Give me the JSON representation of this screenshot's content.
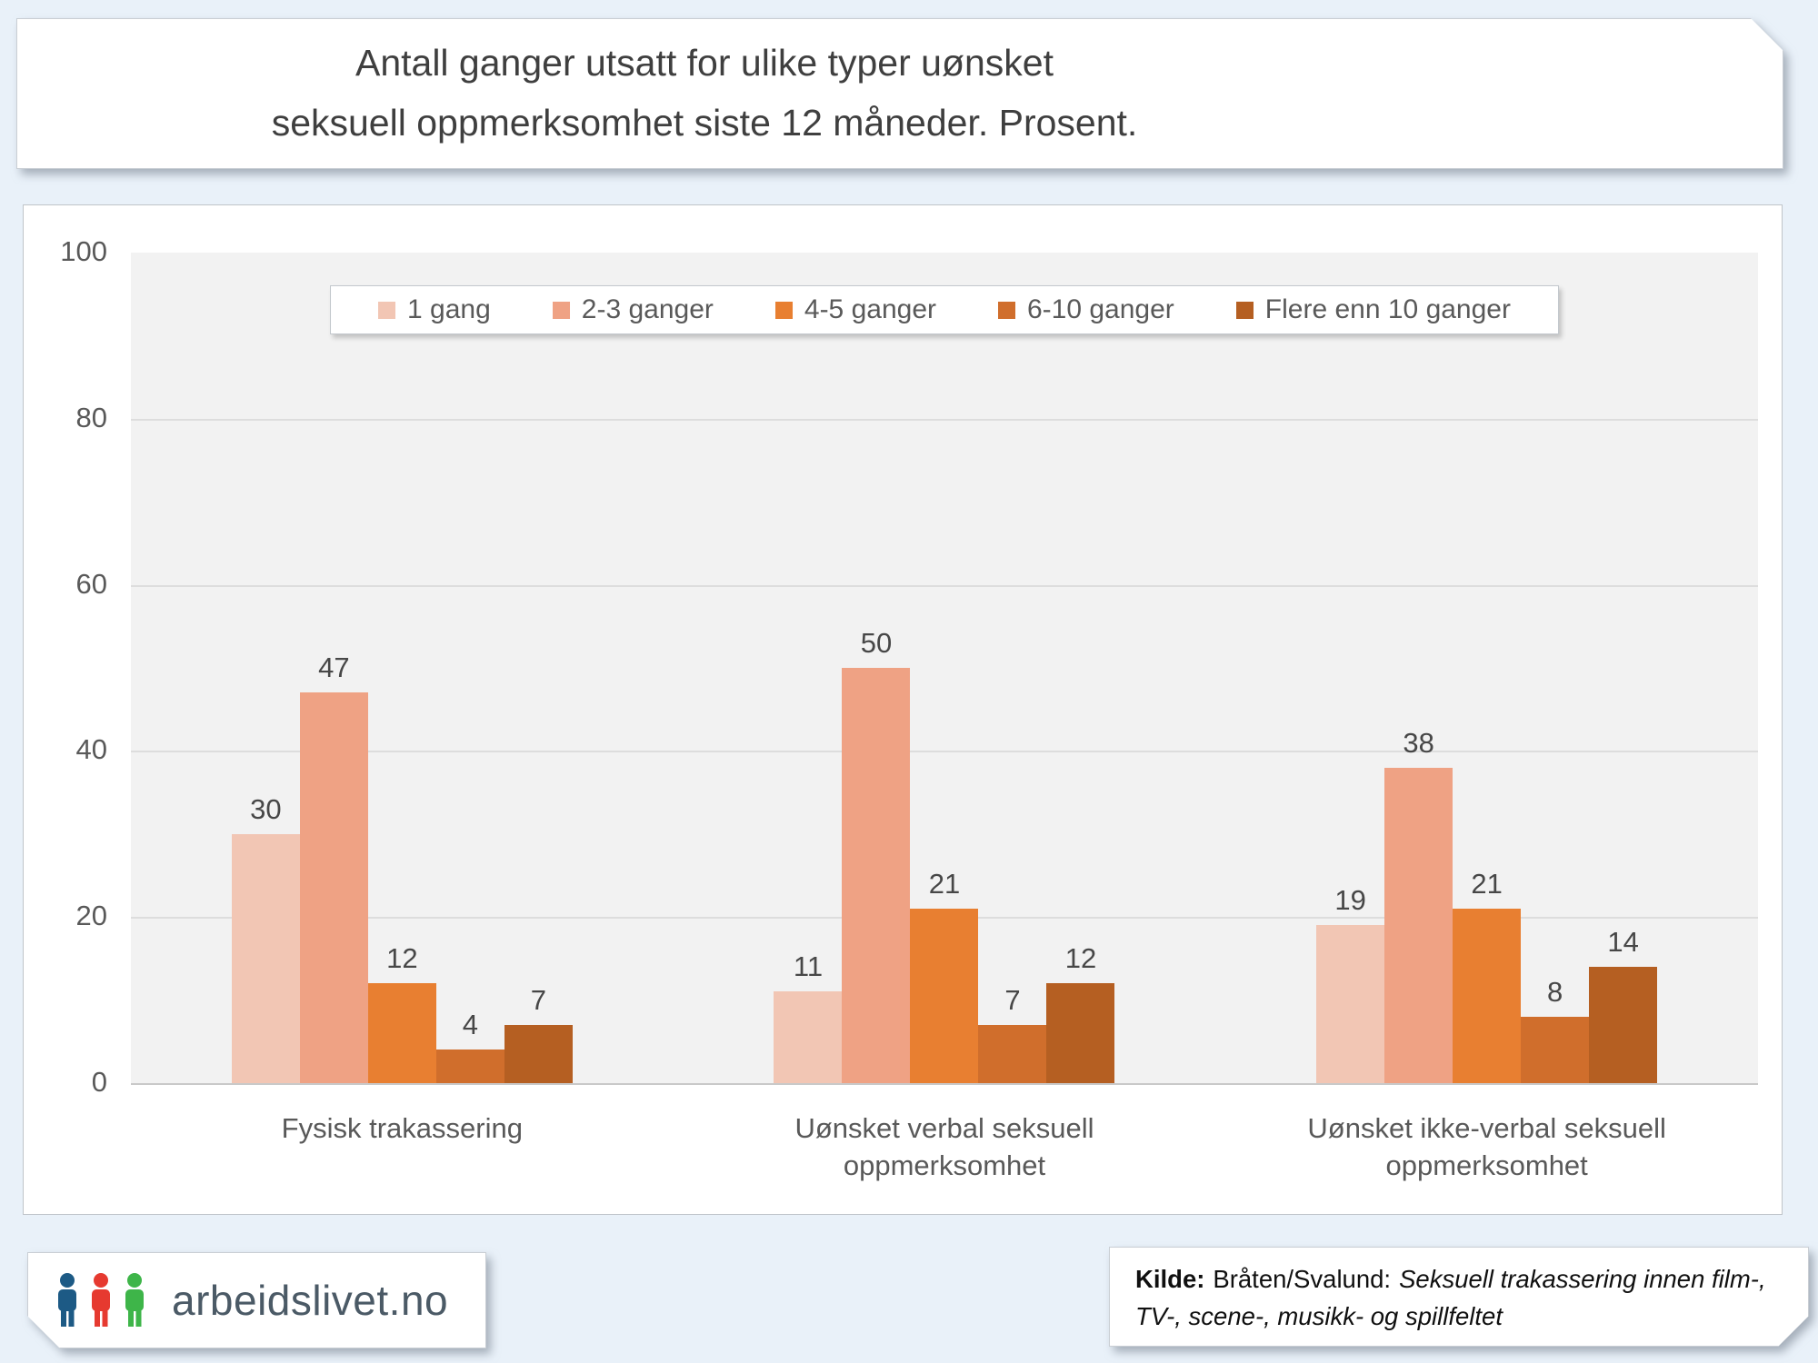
{
  "title": {
    "line1": "Antall ganger utsatt for ulike typer uønsket",
    "line2": "seksuell oppmerksomhet siste 12 måneder. Prosent."
  },
  "chart_data": {
    "type": "bar",
    "title": "Antall ganger utsatt for ulike typer uønsket seksuell oppmerksomhet siste 12 måneder. Prosent.",
    "categories": [
      "Fysisk trakassering",
      "Uønsket verbal seksuell oppmerksomhet",
      "Uønsket ikke-verbal seksuell oppmerksomhet"
    ],
    "series": [
      {
        "name": "1 gang",
        "color": "#f2c6b4",
        "values": [
          30,
          11,
          19
        ]
      },
      {
        "name": "2-3 ganger",
        "color": "#efa284",
        "values": [
          47,
          50,
          38
        ]
      },
      {
        "name": "4-5 ganger",
        "color": "#e87f31",
        "values": [
          12,
          21,
          21
        ]
      },
      {
        "name": "6-10 ganger",
        "color": "#d06e2c",
        "values": [
          4,
          7,
          8
        ]
      },
      {
        "name": "Flere enn 10 ganger",
        "color": "#b55f22",
        "values": [
          7,
          12,
          14
        ]
      }
    ],
    "ylim": [
      0,
      100
    ],
    "yticks": [
      0,
      20,
      40,
      60,
      80,
      100
    ],
    "grid": true,
    "legend_position": "top",
    "plot_background": "#f2f2f2",
    "gridline_color": "#dddddd"
  },
  "footer": {
    "logo_text": "arbeidslivet.no",
    "logo_icon_colors": [
      "#1d5a85",
      "#e63a30",
      "#3eb549"
    ],
    "source": {
      "label": "Kilde:",
      "author": "Bråten/Svalund:",
      "work_line1": "Seksuell trakassering innen film-,",
      "work_line2": "TV-, scene-, musikk- og spillfeltet"
    }
  },
  "page": {
    "background": "#e9f1f9"
  }
}
